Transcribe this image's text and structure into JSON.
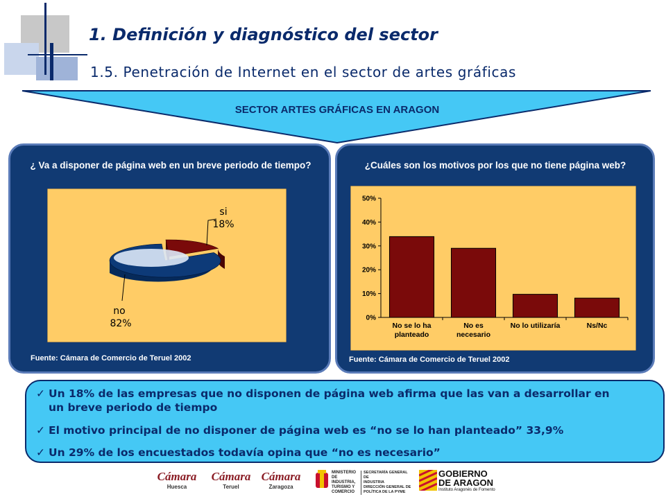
{
  "header": {
    "title": "1.  Definición y diagnóstico del sector",
    "subtitle": "1.5. Penetración de Internet en el sector de artes gráficas"
  },
  "banner": {
    "text": "SECTOR ARTES GRÁFICAS EN ARAGON"
  },
  "left_panel": {
    "question": "¿ Va a disponer de página web en un breve periodo de tiempo?",
    "source": "Fuente: Cámara de Comercio de Teruel 2002"
  },
  "right_panel": {
    "question": "¿Cuáles son los motivos por los que no tiene página web?",
    "source": "Fuente: Cámara de Comercio de Teruel 2002"
  },
  "chart_data": [
    {
      "type": "pie",
      "labels": [
        "si",
        "no"
      ],
      "values": [
        18,
        82
      ],
      "value_labels": [
        "18%",
        "82%"
      ],
      "colors": [
        "#7a0a0a",
        "#0d3a78"
      ],
      "background": "#ffcc66"
    },
    {
      "type": "bar",
      "categories": [
        [
          "No se lo ha",
          "planteado"
        ],
        [
          "No es",
          "necesario"
        ],
        [
          "No lo utilizaría"
        ],
        [
          "Ns/Nc"
        ]
      ],
      "values": [
        33.9,
        29,
        9.7,
        8.1
      ],
      "ylim": [
        0,
        50
      ],
      "yticks": [
        "0%",
        "10%",
        "20%",
        "30%",
        "40%",
        "50%"
      ],
      "bar_color": "#7a0a0a",
      "background": "#ffcc66",
      "grid": false
    }
  ],
  "bullets": [
    {
      "check": "✓",
      "line1": "Un 18% de las empresas que no disponen de página web afirma que las van a desarrollar en",
      "line2": "un breve periodo de tiempo"
    },
    {
      "check": "✓",
      "line1": "El motivo principal de no disponer de página web es “no se lo han planteado” 33,9%"
    },
    {
      "check": "✓",
      "line1": "Un 29% de los encuestados todavía opina que “no es necesario”"
    }
  ],
  "footer_logos": {
    "camara1": {
      "name": "Cámara",
      "city": "Huesca"
    },
    "camara2": {
      "name": "Cámara",
      "city": "Teruel"
    },
    "camara3": {
      "name": "Cámara",
      "city": "Zaragoza"
    },
    "ministerio": [
      "MINISTERIO",
      "DE INDUSTRIA,",
      "TURISMO Y",
      "COMERCIO"
    ],
    "secretaria": [
      "SECRETARÍA GENERAL DE",
      "INDUSTRIA",
      "DIRECCIÓN GENERAL DE",
      "POLÍTICA DE LA PYME"
    ],
    "gobierno": {
      "line1": "GOBIERNO",
      "line2": "DE ARAGON",
      "sub": "Instituto Aragonés de Fomento"
    }
  }
}
